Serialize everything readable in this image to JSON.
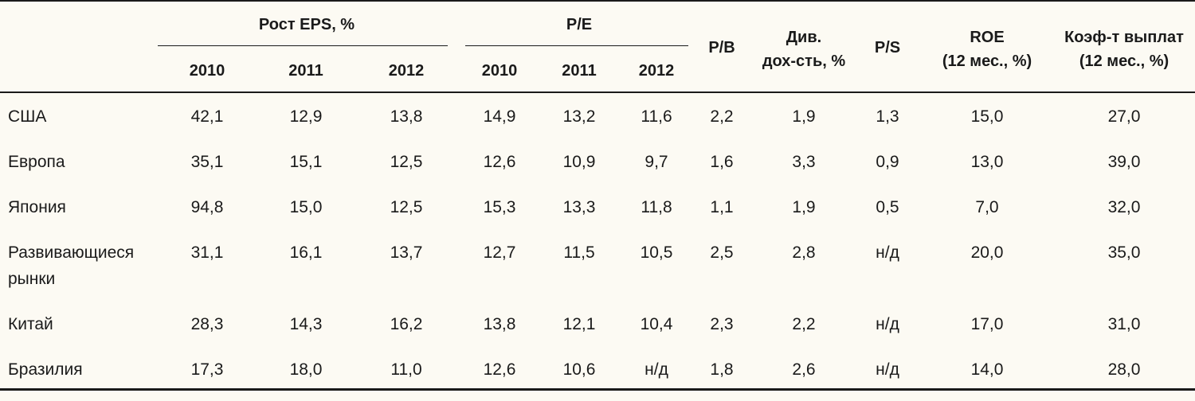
{
  "header": {
    "group_eps": "Рост EPS, %",
    "group_pe": "P/E",
    "years": [
      "2010",
      "2011",
      "2012"
    ],
    "pb": "P/B",
    "div_line1": "Див.",
    "div_line2": "дох-сть, %",
    "ps": "P/S",
    "roe_line1": "ROE",
    "roe_line2": "(12 мес., %)",
    "payout_line1": "Коэф-т выплат",
    "payout_line2": "(12 мес., %)"
  },
  "rows": [
    {
      "label": "США",
      "cells": [
        "42,1",
        "12,9",
        "13,8",
        "14,9",
        "13,2",
        "11,6",
        "2,2",
        "1,9",
        "1,3",
        "15,0",
        "27,0"
      ]
    },
    {
      "label": "Европа",
      "cells": [
        "35,1",
        "15,1",
        "12,5",
        "12,6",
        "10,9",
        "9,7",
        "1,6",
        "3,3",
        "0,9",
        "13,0",
        "39,0"
      ]
    },
    {
      "label": "Япония",
      "cells": [
        "94,8",
        "15,0",
        "12,5",
        "15,3",
        "13,3",
        "11,8",
        "1,1",
        "1,9",
        "0,5",
        "7,0",
        "32,0"
      ]
    },
    {
      "label": "Развивающиеся рынки",
      "cells": [
        "31,1",
        "16,1",
        "13,7",
        "12,7",
        "11,5",
        "10,5",
        "2,5",
        "2,8",
        "н/д",
        "20,0",
        "35,0"
      ]
    },
    {
      "label": "Китай",
      "cells": [
        "28,3",
        "14,3",
        "16,2",
        "13,8",
        "12,1",
        "10,4",
        "2,3",
        "2,2",
        "н/д",
        "17,0",
        "31,0"
      ]
    },
    {
      "label": "Бразилия",
      "cells": [
        "17,3",
        "18,0",
        "11,0",
        "12,6",
        "10,6",
        "н/д",
        "1,8",
        "2,6",
        "н/д",
        "14,0",
        "28,0"
      ]
    }
  ]
}
